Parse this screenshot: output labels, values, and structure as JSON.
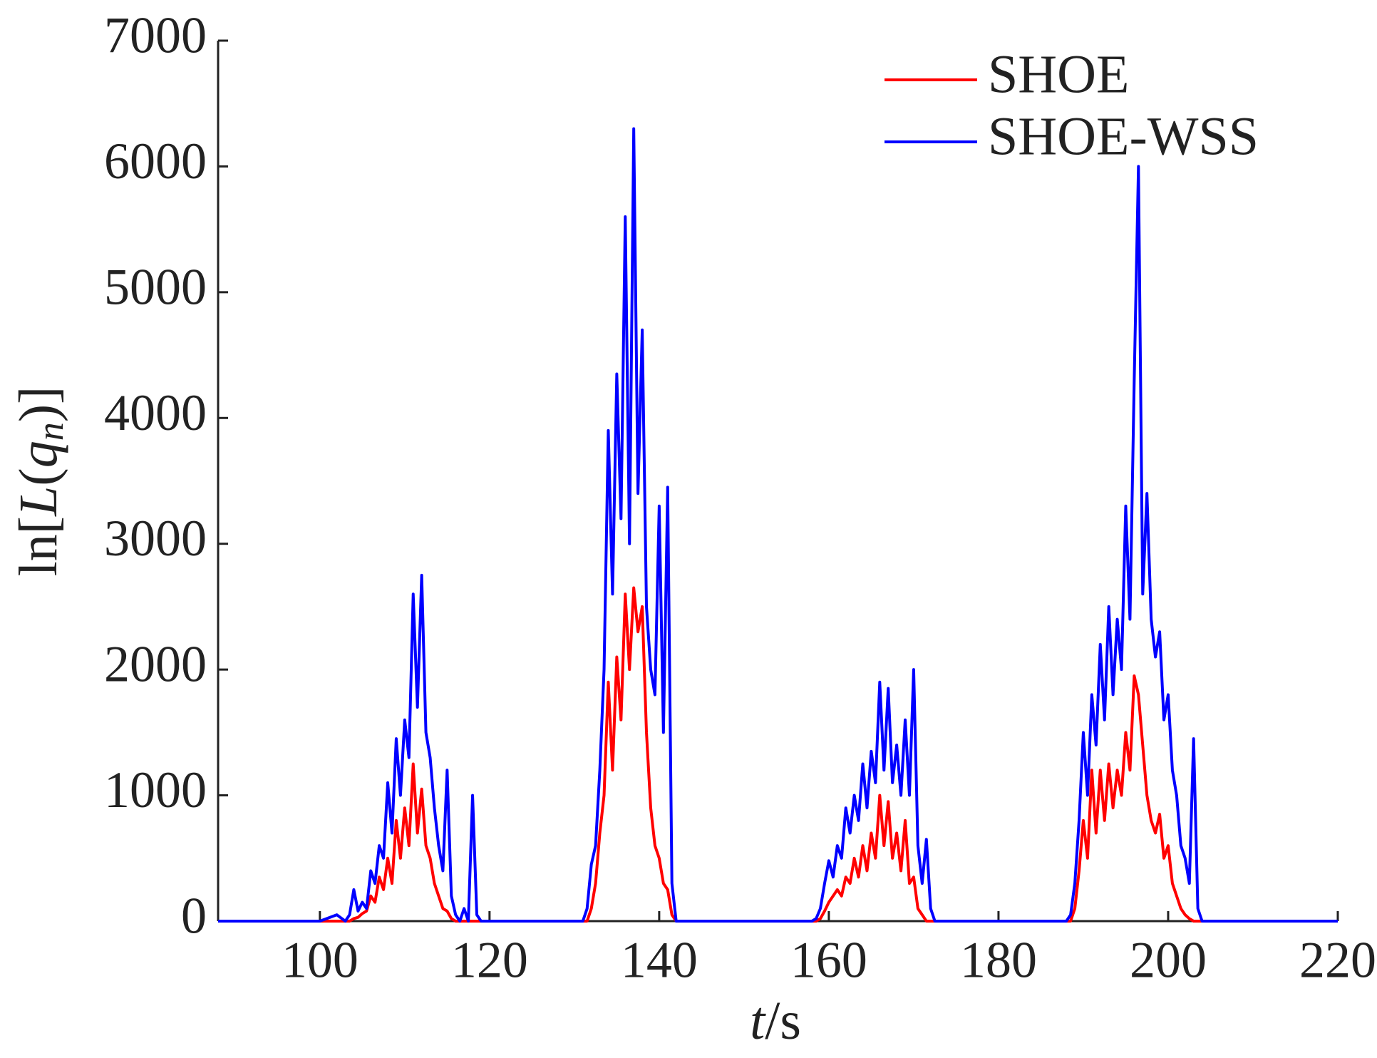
{
  "chart_data": {
    "type": "line",
    "xlabel": [
      "t",
      "/s"
    ],
    "ylabel": [
      "ln[",
      "L",
      "(",
      "q",
      "n",
      ")]"
    ],
    "xlim": [
      88,
      220
    ],
    "ylim": [
      0,
      7000
    ],
    "xticks": [
      100,
      120,
      140,
      160,
      180,
      200,
      220
    ],
    "yticks": [
      0,
      1000,
      2000,
      3000,
      4000,
      5000,
      6000,
      7000
    ],
    "legend": "upper right",
    "x": [
      88,
      95,
      100,
      102,
      103,
      103.5,
      104,
      104.5,
      105,
      105.5,
      106,
      106.5,
      107,
      107.5,
      108,
      108.5,
      109,
      109.5,
      110,
      110.5,
      111,
      111.5,
      112,
      112.5,
      113,
      113.5,
      114,
      114.5,
      115,
      115.5,
      116,
      116.5,
      117,
      117.5,
      118,
      118.5,
      119,
      120,
      125,
      130,
      131,
      131.5,
      132,
      132.5,
      133,
      133.5,
      134,
      134.5,
      135,
      135.5,
      136,
      136.5,
      137,
      137.5,
      138,
      138.5,
      139,
      139.5,
      140,
      140.5,
      141,
      141.5,
      142,
      143,
      150,
      155,
      158,
      158.5,
      159,
      159.5,
      160,
      160.5,
      161,
      161.5,
      162,
      162.5,
      163,
      163.5,
      164,
      164.5,
      165,
      165.5,
      166,
      166.5,
      167,
      167.5,
      168,
      168.5,
      169,
      169.5,
      170,
      170.5,
      171,
      171.5,
      172,
      172.5,
      173,
      173.5,
      174,
      175,
      180,
      185,
      188,
      188.5,
      189,
      189.5,
      190,
      190.5,
      191,
      191.5,
      192,
      192.5,
      193,
      193.5,
      194,
      194.5,
      195,
      195.5,
      196,
      196.5,
      197,
      197.5,
      198,
      198.5,
      199,
      199.5,
      200,
      200.5,
      201,
      201.5,
      202,
      202.5,
      203,
      203.5,
      204,
      204.5,
      205,
      206,
      210,
      220
    ],
    "series": [
      {
        "name": "SHOE",
        "color": "#ff0000",
        "values": [
          0,
          0,
          0,
          0,
          0,
          0,
          20,
          30,
          60,
          80,
          200,
          150,
          350,
          250,
          500,
          300,
          800,
          500,
          900,
          600,
          1250,
          700,
          1050,
          600,
          500,
          300,
          200,
          100,
          80,
          20,
          0,
          0,
          0,
          0,
          0,
          0,
          0,
          0,
          0,
          0,
          0,
          0,
          100,
          300,
          700,
          1000,
          1900,
          1200,
          2100,
          1600,
          2600,
          2000,
          2650,
          2300,
          2500,
          1500,
          900,
          600,
          500,
          300,
          250,
          50,
          0,
          0,
          0,
          0,
          0,
          0,
          20,
          80,
          150,
          200,
          250,
          200,
          350,
          300,
          500,
          350,
          600,
          400,
          700,
          500,
          1000,
          600,
          950,
          500,
          700,
          400,
          800,
          300,
          350,
          100,
          50,
          0,
          0,
          0,
          0,
          0,
          0,
          0,
          0,
          0,
          0,
          0,
          100,
          400,
          800,
          500,
          1200,
          700,
          1200,
          800,
          1250,
          900,
          1200,
          1000,
          1500,
          1200,
          1950,
          1800,
          1400,
          1000,
          800,
          700,
          850,
          500,
          600,
          300,
          200,
          100,
          50,
          20,
          0,
          0,
          0,
          0,
          0,
          0,
          0,
          0
        ]
      },
      {
        "name": "SHOE-WSS",
        "color": "#0000ff",
        "values": [
          0,
          0,
          0,
          50,
          0,
          50,
          250,
          80,
          150,
          100,
          400,
          300,
          600,
          500,
          1100,
          700,
          1450,
          1000,
          1600,
          1300,
          2600,
          1700,
          2750,
          1500,
          1300,
          900,
          600,
          400,
          1200,
          200,
          50,
          0,
          100,
          0,
          1000,
          50,
          0,
          0,
          0,
          0,
          0,
          100,
          450,
          600,
          1200,
          2000,
          3900,
          2600,
          4350,
          3200,
          5600,
          3000,
          6300,
          3400,
          4700,
          2500,
          2000,
          1800,
          3300,
          1500,
          3450,
          300,
          0,
          0,
          0,
          0,
          0,
          20,
          100,
          300,
          480,
          350,
          600,
          500,
          900,
          700,
          1000,
          800,
          1250,
          900,
          1350,
          1100,
          1900,
          1200,
          1850,
          1100,
          1400,
          1000,
          1600,
          1000,
          2000,
          600,
          300,
          650,
          100,
          0,
          0,
          0,
          0,
          0,
          0,
          0,
          0,
          50,
          300,
          800,
          1500,
          1000,
          1800,
          1400,
          2200,
          1600,
          2500,
          1800,
          2400,
          2000,
          3300,
          2400,
          4300,
          6000,
          2600,
          3400,
          2400,
          2100,
          2300,
          1600,
          1800,
          1200,
          1000,
          600,
          500,
          300,
          1450,
          100,
          0,
          0,
          0,
          0,
          0,
          0
        ]
      }
    ]
  }
}
